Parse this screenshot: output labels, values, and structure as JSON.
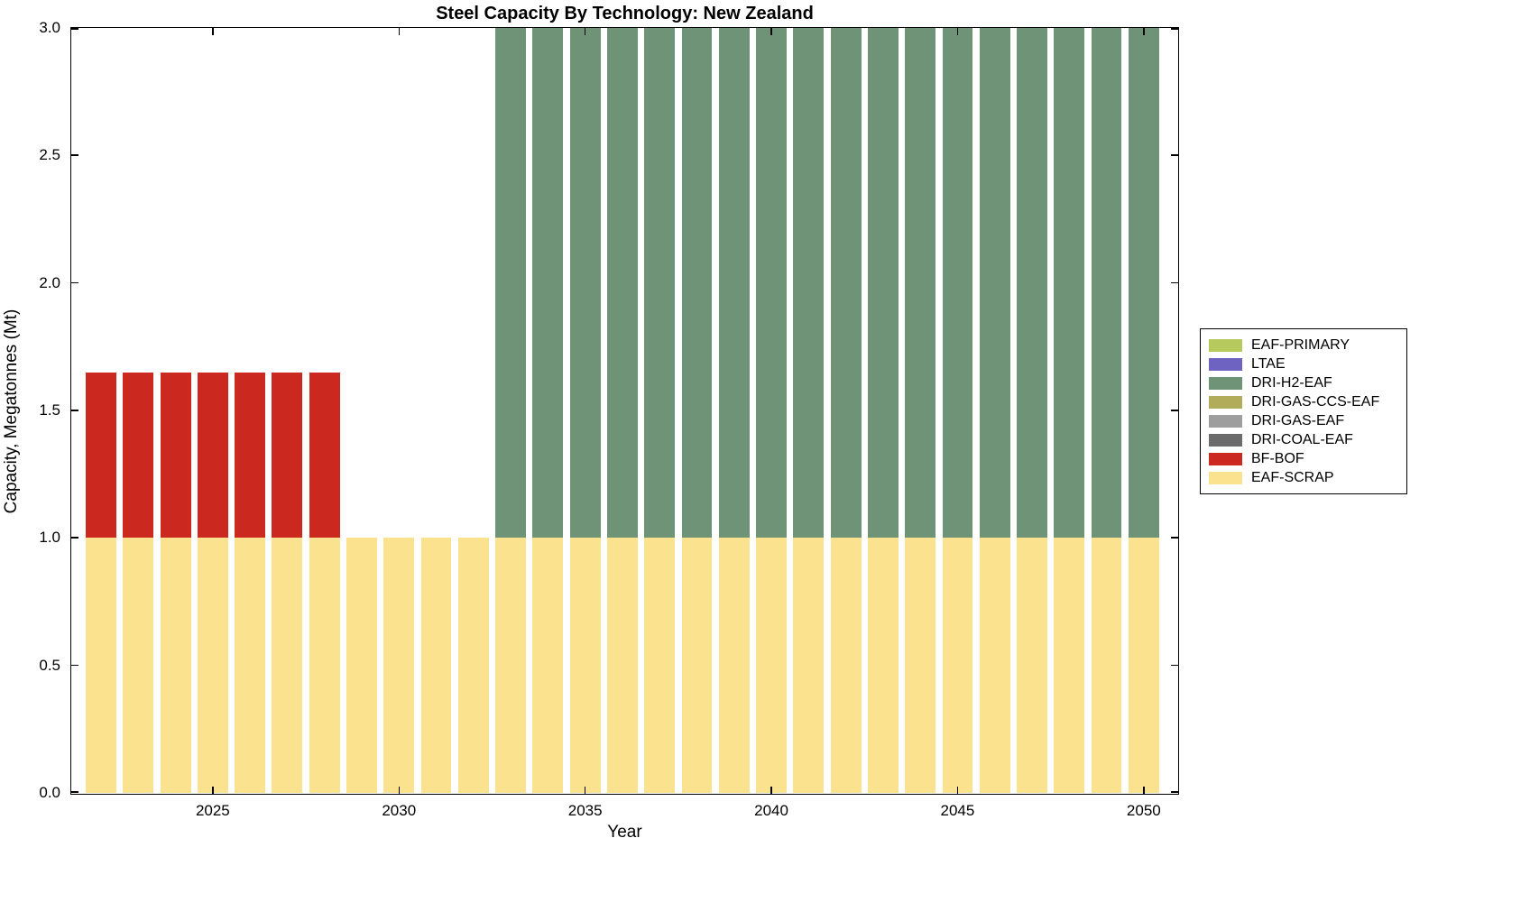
{
  "window": {
    "background": "#ffffff"
  },
  "chart_data": {
    "type": "bar",
    "stacked": true,
    "title": "Steel Capacity By Technology: New Zealand",
    "xlabel": "Year",
    "ylabel": "Capacity, Megatonnes (Mt)",
    "xlim": [
      2021.2,
      2050.9
    ],
    "ylim": [
      0,
      3
    ],
    "xticks": [
      2025,
      2030,
      2035,
      2040,
      2045,
      2050
    ],
    "yticks": [
      "0.0",
      "0.5",
      "1.0",
      "1.5",
      "2.0",
      "2.5",
      "3.0"
    ],
    "grid": false,
    "axis_color": "#000000",
    "bar_width_years": 0.82,
    "x": [
      2022,
      2023,
      2024,
      2025,
      2026,
      2027,
      2028,
      2029,
      2030,
      2031,
      2032,
      2033,
      2034,
      2035,
      2036,
      2037,
      2038,
      2039,
      2040,
      2041,
      2042,
      2043,
      2044,
      2045,
      2046,
      2047,
      2048,
      2049,
      2050
    ],
    "stack_order": [
      "EAF-SCRAP",
      "BF-BOF",
      "DRI-H2-EAF"
    ],
    "series": [
      {
        "name": "EAF-SCRAP",
        "color": "#FBE28F",
        "values": [
          1,
          1,
          1,
          1,
          1,
          1,
          1,
          1,
          1,
          1,
          1,
          1,
          1,
          1,
          1,
          1,
          1,
          1,
          1,
          1,
          1,
          1,
          1,
          1,
          1,
          1,
          1,
          1,
          1
        ]
      },
      {
        "name": "BF-BOF",
        "color": "#CB2820",
        "values": [
          0.65,
          0.65,
          0.65,
          0.65,
          0.65,
          0.65,
          0.65,
          0,
          0,
          0,
          0,
          0,
          0,
          0,
          0,
          0,
          0,
          0,
          0,
          0,
          0,
          0,
          0,
          0,
          0,
          0,
          0,
          0,
          0
        ]
      },
      {
        "name": "DRI-H2-EAF",
        "color": "#6E9377",
        "values": [
          0,
          0,
          0,
          0,
          0,
          0,
          0,
          0,
          0,
          0,
          0,
          2,
          2,
          2,
          2,
          2,
          2,
          2,
          2,
          2,
          2,
          2,
          2,
          2,
          2,
          2,
          2,
          2,
          2
        ]
      }
    ],
    "legend": {
      "position": "right-outside",
      "entries": [
        {
          "label": "EAF-PRIMARY",
          "color": "#B6C95C"
        },
        {
          "label": "LTAE",
          "color": "#6F63C2"
        },
        {
          "label": "DRI-H2-EAF",
          "color": "#6E9377"
        },
        {
          "label": "DRI-GAS-CCS-EAF",
          "color": "#B1AC59"
        },
        {
          "label": "DRI-GAS-EAF",
          "color": "#9E9E9E"
        },
        {
          "label": "DRI-COAL-EAF",
          "color": "#6B6B6B"
        },
        {
          "label": "BF-BOF",
          "color": "#CB2820"
        },
        {
          "label": "EAF-SCRAP",
          "color": "#FBE28F"
        }
      ]
    }
  }
}
